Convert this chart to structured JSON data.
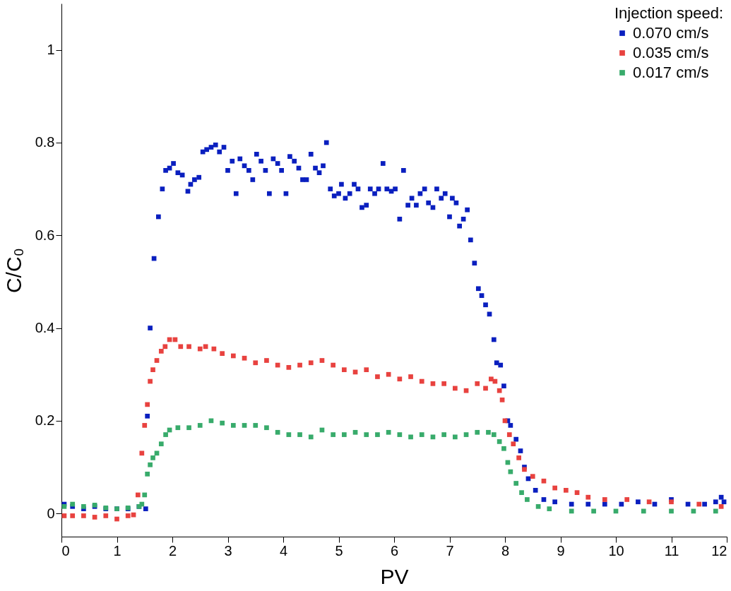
{
  "chart_data": {
    "type": "scatter",
    "xlabel": "PV",
    "ylabel": "C/C₀",
    "legend_title": "Injection speed:",
    "legend": "top right",
    "marker": "square",
    "grid": false,
    "xlim": [
      0,
      12
    ],
    "xticks": [
      0,
      1,
      2,
      3,
      4,
      5,
      6,
      7,
      8,
      9,
      10,
      11,
      12
    ],
    "ylim": [
      -0.05,
      1.1
    ],
    "yticks": [
      0,
      0.2,
      0.4,
      0.6,
      0.8,
      1
    ],
    "series": [
      {
        "name": "0.070 cm/s",
        "color": "#0a1fbf",
        "x": [
          0.05,
          0.2,
          0.4,
          0.6,
          0.8,
          1.0,
          1.2,
          1.4,
          1.52,
          1.55,
          1.6,
          1.67,
          1.75,
          1.82,
          1.88,
          1.95,
          2.02,
          2.1,
          2.18,
          2.28,
          2.33,
          2.4,
          2.48,
          2.55,
          2.62,
          2.7,
          2.78,
          2.85,
          2.93,
          3.0,
          3.08,
          3.15,
          3.22,
          3.3,
          3.38,
          3.45,
          3.52,
          3.6,
          3.68,
          3.75,
          3.82,
          3.9,
          3.97,
          4.05,
          4.12,
          4.2,
          4.28,
          4.35,
          4.42,
          4.5,
          4.58,
          4.65,
          4.72,
          4.78,
          4.85,
          4.92,
          5.0,
          5.05,
          5.12,
          5.2,
          5.28,
          5.35,
          5.42,
          5.5,
          5.57,
          5.65,
          5.72,
          5.8,
          5.87,
          5.95,
          6.02,
          6.1,
          6.17,
          6.25,
          6.32,
          6.4,
          6.47,
          6.55,
          6.62,
          6.7,
          6.77,
          6.85,
          6.92,
          7.0,
          7.05,
          7.12,
          7.18,
          7.25,
          7.32,
          7.38,
          7.45,
          7.52,
          7.58,
          7.65,
          7.72,
          7.8,
          7.85,
          7.92,
          7.98,
          8.05,
          8.1,
          8.2,
          8.28,
          8.35,
          8.42,
          8.55,
          8.7,
          8.9,
          9.2,
          9.5,
          9.8,
          10.1,
          10.4,
          10.7,
          11.0,
          11.3,
          11.6,
          11.8,
          11.9,
          11.95
        ],
        "values": [
          0.02,
          0.015,
          0.01,
          0.015,
          0.01,
          0.01,
          0.01,
          0.015,
          0.01,
          0.21,
          0.4,
          0.55,
          0.64,
          0.7,
          0.74,
          0.745,
          0.755,
          0.735,
          0.73,
          0.695,
          0.71,
          0.72,
          0.725,
          0.78,
          0.785,
          0.79,
          0.795,
          0.78,
          0.79,
          0.74,
          0.76,
          0.69,
          0.765,
          0.75,
          0.74,
          0.72,
          0.775,
          0.76,
          0.74,
          0.69,
          0.765,
          0.755,
          0.74,
          0.69,
          0.77,
          0.76,
          0.745,
          0.72,
          0.72,
          0.775,
          0.745,
          0.735,
          0.75,
          0.8,
          0.7,
          0.685,
          0.69,
          0.71,
          0.68,
          0.69,
          0.71,
          0.7,
          0.66,
          0.665,
          0.7,
          0.69,
          0.7,
          0.755,
          0.7,
          0.695,
          0.7,
          0.635,
          0.74,
          0.665,
          0.68,
          0.665,
          0.69,
          0.7,
          0.67,
          0.66,
          0.7,
          0.68,
          0.69,
          0.64,
          0.68,
          0.67,
          0.62,
          0.635,
          0.655,
          0.59,
          0.54,
          0.485,
          0.47,
          0.45,
          0.43,
          0.375,
          0.325,
          0.32,
          0.275,
          0.2,
          0.19,
          0.16,
          0.135,
          0.1,
          0.075,
          0.05,
          0.03,
          0.025,
          0.02,
          0.02,
          0.02,
          0.02,
          0.025,
          0.02,
          0.03,
          0.02,
          0.02,
          0.025,
          0.035,
          0.025
        ]
      },
      {
        "name": "0.035 cm/s",
        "color": "#e8423f",
        "x": [
          0.05,
          0.2,
          0.4,
          0.6,
          0.8,
          1.0,
          1.2,
          1.3,
          1.38,
          1.45,
          1.5,
          1.55,
          1.6,
          1.65,
          1.72,
          1.8,
          1.87,
          1.95,
          2.05,
          2.15,
          2.3,
          2.5,
          2.6,
          2.75,
          2.9,
          3.1,
          3.3,
          3.5,
          3.7,
          3.9,
          4.1,
          4.3,
          4.5,
          4.7,
          4.9,
          5.1,
          5.3,
          5.5,
          5.7,
          5.9,
          6.1,
          6.3,
          6.5,
          6.7,
          6.9,
          7.1,
          7.3,
          7.5,
          7.65,
          7.75,
          7.82,
          7.9,
          7.95,
          8.0,
          8.08,
          8.15,
          8.25,
          8.35,
          8.5,
          8.7,
          8.9,
          9.1,
          9.3,
          9.5,
          9.8,
          10.2,
          10.6,
          11.0,
          11.5,
          11.9
        ],
        "values": [
          -0.005,
          -0.005,
          -0.005,
          -0.008,
          -0.005,
          -0.012,
          -0.005,
          -0.003,
          0.04,
          0.13,
          0.19,
          0.235,
          0.285,
          0.31,
          0.33,
          0.35,
          0.36,
          0.375,
          0.375,
          0.36,
          0.36,
          0.355,
          0.36,
          0.355,
          0.345,
          0.34,
          0.335,
          0.325,
          0.33,
          0.32,
          0.315,
          0.32,
          0.325,
          0.33,
          0.32,
          0.31,
          0.305,
          0.31,
          0.295,
          0.3,
          0.29,
          0.295,
          0.285,
          0.28,
          0.28,
          0.27,
          0.265,
          0.28,
          0.27,
          0.29,
          0.285,
          0.265,
          0.245,
          0.2,
          0.17,
          0.15,
          0.12,
          0.095,
          0.08,
          0.07,
          0.055,
          0.05,
          0.045,
          0.035,
          0.03,
          0.03,
          0.025,
          0.025,
          0.02,
          0.015
        ]
      },
      {
        "name": "0.017 cm/s",
        "color": "#38ab6b",
        "x": [
          0.05,
          0.2,
          0.4,
          0.6,
          0.8,
          1.0,
          1.2,
          1.4,
          1.45,
          1.5,
          1.55,
          1.6,
          1.65,
          1.72,
          1.8,
          1.88,
          1.95,
          2.1,
          2.3,
          2.5,
          2.7,
          2.9,
          3.1,
          3.3,
          3.5,
          3.7,
          3.9,
          4.1,
          4.3,
          4.5,
          4.7,
          4.9,
          5.1,
          5.3,
          5.5,
          5.7,
          5.9,
          6.1,
          6.3,
          6.5,
          6.7,
          6.9,
          7.1,
          7.3,
          7.5,
          7.7,
          7.8,
          7.9,
          7.98,
          8.05,
          8.1,
          8.2,
          8.3,
          8.4,
          8.6,
          8.8,
          9.2,
          9.6,
          10.0,
          10.5,
          11.0,
          11.4,
          11.8
        ],
        "values": [
          0.015,
          0.02,
          0.015,
          0.018,
          0.012,
          0.01,
          0.012,
          0.015,
          0.02,
          0.04,
          0.085,
          0.105,
          0.12,
          0.13,
          0.15,
          0.17,
          0.18,
          0.185,
          0.185,
          0.19,
          0.2,
          0.195,
          0.19,
          0.19,
          0.19,
          0.185,
          0.175,
          0.17,
          0.17,
          0.165,
          0.18,
          0.17,
          0.17,
          0.175,
          0.17,
          0.17,
          0.175,
          0.17,
          0.165,
          0.17,
          0.165,
          0.17,
          0.165,
          0.17,
          0.175,
          0.175,
          0.17,
          0.155,
          0.14,
          0.11,
          0.09,
          0.065,
          0.045,
          0.03,
          0.015,
          0.01,
          0.005,
          0.005,
          0.005,
          0.005,
          0.005,
          0.005,
          0.005
        ]
      }
    ]
  }
}
